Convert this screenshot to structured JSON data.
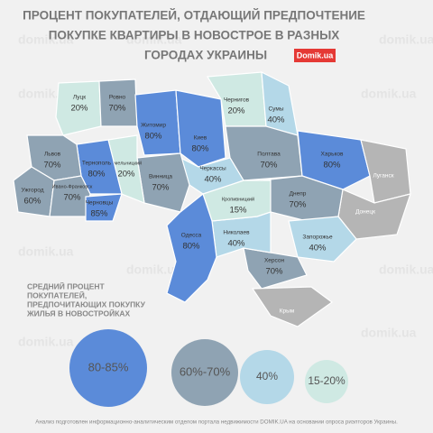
{
  "header": {
    "title_lines": [
      "ПРОЦЕНТ ПОКУПАТЕЛЕЙ, ОТДАЮЩИЙ ПРЕДПОЧТЕНИЕ",
      "ПОКУПКЕ КВАРТИРЫ В НОВОСТРОЕ В РАЗНЫХ",
      "ГОРОДАХ УКРАИНЫ"
    ],
    "logo": "Domik.ua"
  },
  "watermark": "domik.ua",
  "regions": [
    {
      "name": "Луцк",
      "label": "20%",
      "color": "#cfe9e3"
    },
    {
      "name": "Ровно",
      "label": "70%",
      "color": "#8fa3b3"
    },
    {
      "name": "Житомир",
      "label": "80%",
      "color": "#5b8bd9"
    },
    {
      "name": "Киев",
      "label": "80%",
      "color": "#5b8bd9"
    },
    {
      "name": "Чернигов",
      "label": "20%",
      "color": "#cfe9e3"
    },
    {
      "name": "Сумы",
      "label": "40%",
      "color": "#b4d8e8"
    },
    {
      "name": "Полтава",
      "label": "70%",
      "color": "#8fa3b3"
    },
    {
      "name": "Харьков",
      "label": "80%",
      "color": "#5b8bd9"
    },
    {
      "name": "Луганск",
      "color": "#b5b5b5"
    },
    {
      "name": "Донецк",
      "color": "#b5b5b5"
    },
    {
      "name": "Днепр",
      "label": "70%",
      "color": "#8fa3b3"
    },
    {
      "name": "Запорожье",
      "label": "40%",
      "color": "#b4d8e8"
    },
    {
      "name": "Херсон",
      "label": "70%",
      "color": "#8fa3b3"
    },
    {
      "name": "Крым",
      "color": "#b5b5b5"
    },
    {
      "name": "Николаев",
      "label": "40%",
      "color": "#b4d8e8"
    },
    {
      "name": "Кропивницкий",
      "label": "15%",
      "color": "#cfe9e3"
    },
    {
      "name": "Черкассы",
      "label": "40%",
      "color": "#b4d8e8"
    },
    {
      "name": "Винница",
      "label": "70%",
      "color": "#8fa3b3"
    },
    {
      "name": "Хмельницкий",
      "label": "20%",
      "color": "#cfe9e3"
    },
    {
      "name": "Тернополь",
      "label": "80%",
      "color": "#5b8bd9"
    },
    {
      "name": "Львов",
      "label": "70%",
      "color": "#8fa3b3"
    },
    {
      "name": "Ужгород",
      "label": "60%",
      "color": "#8fa3b3"
    },
    {
      "name": "Ивано-Франковск",
      "label": "70%",
      "color": "#8fa3b3"
    },
    {
      "name": "Черновцы",
      "label": "85%",
      "color": "#5b8bd9"
    },
    {
      "name": "Одесса",
      "label": "80%",
      "color": "#5b8bd9"
    }
  ],
  "legend": {
    "title_lines": [
      "СРЕДНИЙ ПРОЦЕНТ",
      "ПОКУПАТЕЛЕЙ,",
      "ПРЕДПОЧИТАЮЩИХ ПОКУПКУ",
      "ЖИЛЬЯ В НОВОСТРОЙКАХ"
    ],
    "items": [
      {
        "label": "80-85%",
        "color": "#5b8bd9"
      },
      {
        "label": "60%-70%",
        "color": "#8fa3b3"
      },
      {
        "label": "40%",
        "color": "#b4d8e8"
      },
      {
        "label": "15-20%",
        "color": "#cfe9e3"
      }
    ]
  },
  "footnote": "Анализ подготовлен информационно-аналитическим отделом портала недвижимости DOMIK.UA на основании опроса риэлторов Украины."
}
